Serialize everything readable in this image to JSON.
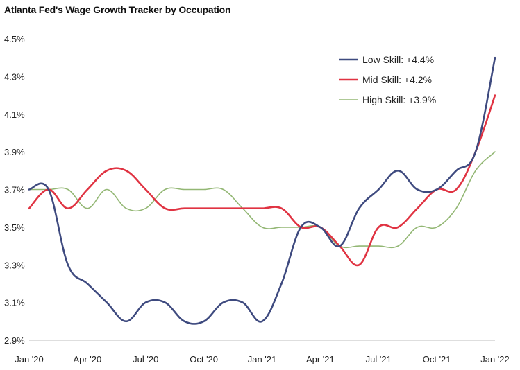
{
  "chart_data": {
    "type": "line",
    "title": "Atlanta Fed's Wage Growth Tracker by Occupation",
    "xlabel": "",
    "ylabel": "",
    "x": [
      "Jan '20",
      "Feb '20",
      "Mar '20",
      "Apr '20",
      "May '20",
      "Jun '20",
      "Jul '20",
      "Aug '20",
      "Sep '20",
      "Oct '20",
      "Nov '20",
      "Dec '20",
      "Jan '21",
      "Feb '21",
      "Mar '21",
      "Apr '21",
      "May '21",
      "Jun '21",
      "Jul '21",
      "Aug '21",
      "Sep '21",
      "Oct '21",
      "Nov '21",
      "Dec '21",
      "Jan '22"
    ],
    "x_tick_labels": [
      "Jan '20",
      "Apr '20",
      "Jul '20",
      "Oct '20",
      "Jan '21",
      "Apr '21",
      "Jul '21",
      "Oct '21",
      "Jan '22"
    ],
    "y_tick_labels": [
      "2.9%",
      "3.1%",
      "3.3%",
      "3.5%",
      "3.7%",
      "3.9%",
      "4.1%",
      "4.3%",
      "4.5%"
    ],
    "y_ticks": [
      2.9,
      3.1,
      3.3,
      3.5,
      3.7,
      3.9,
      4.1,
      4.3,
      4.5
    ],
    "ylim": [
      2.9,
      4.5
    ],
    "grid": false,
    "legend_position": "top-right",
    "series": [
      {
        "name": "Low Skill",
        "legend_label": "Low Skill: +4.4%",
        "color": "#3e4a7f",
        "width": 2.6,
        "values": [
          3.7,
          3.7,
          3.3,
          3.2,
          3.1,
          3.0,
          3.1,
          3.1,
          3.0,
          3.0,
          3.1,
          3.1,
          3.0,
          3.2,
          3.5,
          3.5,
          3.4,
          3.6,
          3.7,
          3.8,
          3.7,
          3.7,
          3.8,
          3.9,
          4.4
        ]
      },
      {
        "name": "Mid Skill",
        "legend_label": "Mid Skill: +4.2%",
        "color": "#e03342",
        "width": 2.6,
        "values": [
          3.6,
          3.7,
          3.6,
          3.7,
          3.8,
          3.8,
          3.7,
          3.6,
          3.6,
          3.6,
          3.6,
          3.6,
          3.6,
          3.6,
          3.5,
          3.5,
          3.4,
          3.3,
          3.5,
          3.5,
          3.6,
          3.7,
          3.7,
          3.9,
          4.2
        ]
      },
      {
        "name": "High Skill",
        "legend_label": "High Skill: +3.9%",
        "color": "#93b774",
        "width": 1.6,
        "values": [
          3.7,
          3.7,
          3.7,
          3.6,
          3.7,
          3.6,
          3.6,
          3.7,
          3.7,
          3.7,
          3.7,
          3.6,
          3.5,
          3.5,
          3.5,
          3.5,
          3.4,
          3.4,
          3.4,
          3.4,
          3.5,
          3.5,
          3.6,
          3.8,
          3.9
        ]
      }
    ]
  }
}
